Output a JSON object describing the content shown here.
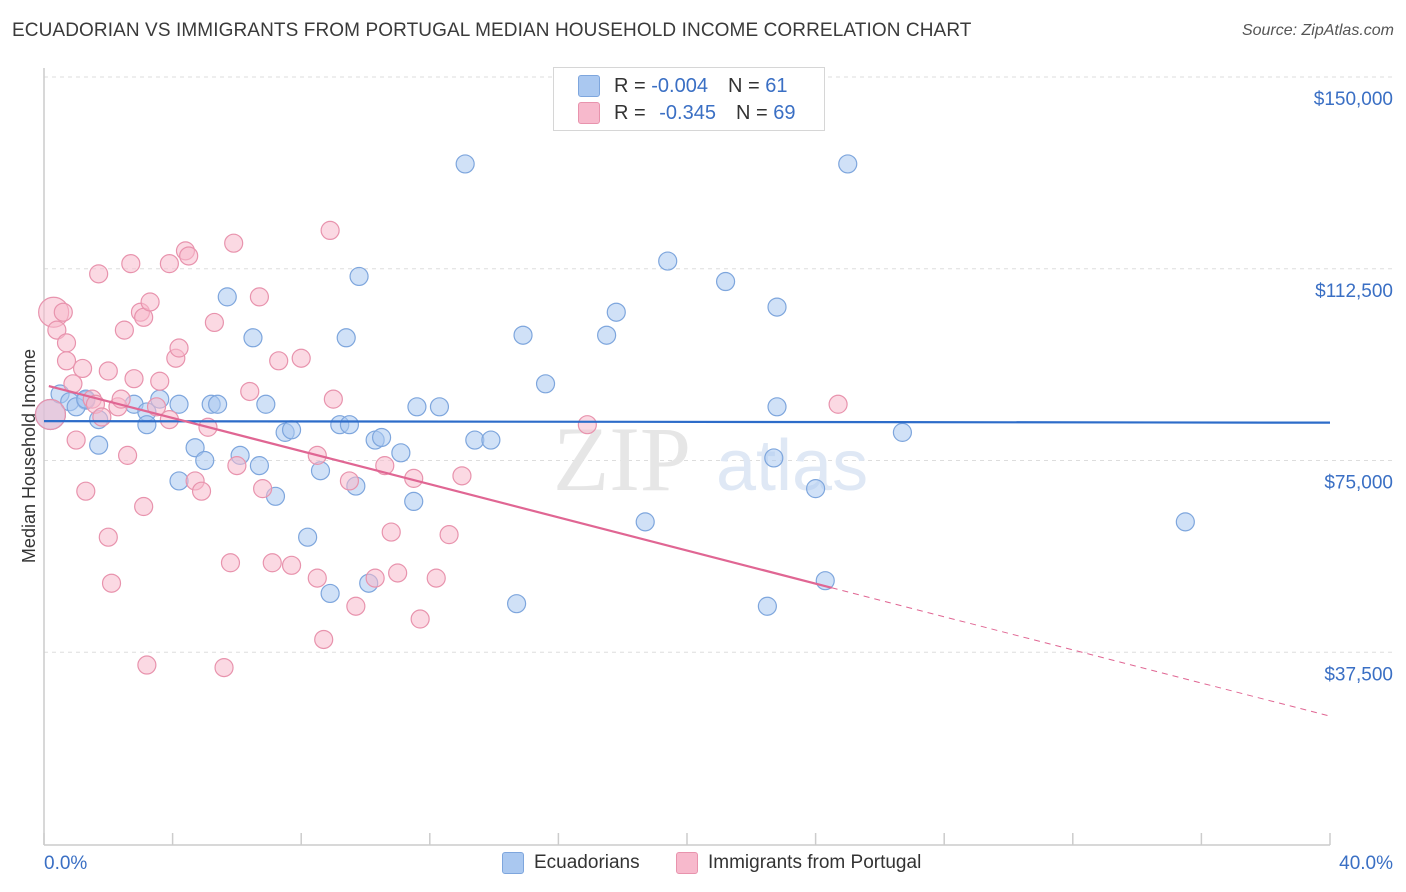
{
  "title": "ECUADORIAN VS IMMIGRANTS FROM PORTUGAL MEDIAN HOUSEHOLD INCOME CORRELATION CHART",
  "source": "Source: ZipAtlas.com",
  "watermark": {
    "part1": "ZIP",
    "part2": "atlas"
  },
  "legend": {
    "r_label": "R =",
    "n_label": "N =",
    "series1": {
      "r": "-0.004",
      "n": "61"
    },
    "series2": {
      "r": "-0.345",
      "n": "69"
    }
  },
  "bottom_legend": {
    "series1": "Ecuadorians",
    "series2": "Immigrants from Portugal"
  },
  "colors": {
    "blue_fill": "#aac8f0",
    "blue_stroke": "#7ea6dd",
    "blue_line": "#2d6cc9",
    "pink_fill": "#f7b9cc",
    "pink_stroke": "#e893ad",
    "pink_line": "#e06693",
    "tick_label": "#3a6fc4",
    "grid": "#dddddd"
  },
  "chart_data": {
    "type": "scatter",
    "title": "ECUADORIAN VS IMMIGRANTS FROM PORTUGAL MEDIAN HOUSEHOLD INCOME CORRELATION CHART",
    "xlabel": "",
    "ylabel": "Median Household Income",
    "xlim": [
      0,
      40
    ],
    "ylim": [
      0,
      150000
    ],
    "x_tick_labels": [
      {
        "value": 0,
        "label": "0.0%"
      },
      {
        "value": 40,
        "label": "40.0%"
      }
    ],
    "y_ticks": [
      {
        "value": 37500,
        "label": "$37,500"
      },
      {
        "value": 75000,
        "label": "$75,000"
      },
      {
        "value": 112500,
        "label": "$112,500"
      },
      {
        "value": 150000,
        "label": "$150,000"
      }
    ],
    "series": [
      {
        "name": "Ecuadorians",
        "r": -0.004,
        "n": 61,
        "trend": {
          "x": [
            0,
            40
          ],
          "y": [
            82700,
            82400
          ],
          "dashed_from": null
        },
        "points": [
          [
            0.2,
            84000
          ],
          [
            0.5,
            88000
          ],
          [
            0.8,
            86500
          ],
          [
            1.3,
            86800
          ],
          [
            1.0,
            85500
          ],
          [
            1.7,
            83000
          ],
          [
            1.7,
            78000
          ],
          [
            1.3,
            87000
          ],
          [
            2.8,
            86000
          ],
          [
            3.2,
            84500
          ],
          [
            3.2,
            82000
          ],
          [
            3.6,
            87000
          ],
          [
            4.2,
            86000
          ],
          [
            5.2,
            86000
          ],
          [
            5.4,
            86000
          ],
          [
            6.9,
            86000
          ],
          [
            4.7,
            77500
          ],
          [
            5.0,
            75000
          ],
          [
            4.2,
            71000
          ],
          [
            6.1,
            76000
          ],
          [
            6.7,
            74000
          ],
          [
            7.2,
            68000
          ],
          [
            7.5,
            80500
          ],
          [
            7.7,
            81000
          ],
          [
            8.6,
            73000
          ],
          [
            9.2,
            82000
          ],
          [
            8.2,
            60000
          ],
          [
            8.9,
            49000
          ],
          [
            9.7,
            70000
          ],
          [
            10.3,
            79000
          ],
          [
            10.5,
            79500
          ],
          [
            11.1,
            76500
          ],
          [
            10.1,
            51000
          ],
          [
            11.6,
            85500
          ],
          [
            12.3,
            85500
          ],
          [
            11.5,
            67000
          ],
          [
            13.4,
            79000
          ],
          [
            13.9,
            79000
          ],
          [
            13.1,
            133000
          ],
          [
            9.8,
            111000
          ],
          [
            9.4,
            99000
          ],
          [
            5.7,
            107000
          ],
          [
            6.5,
            99000
          ],
          [
            14.9,
            99500
          ],
          [
            15.6,
            90000
          ],
          [
            14.7,
            47000
          ],
          [
            17.5,
            99500
          ],
          [
            17.8,
            104000
          ],
          [
            18.7,
            63000
          ],
          [
            19.4,
            114000
          ],
          [
            21.2,
            110000
          ],
          [
            22.8,
            85500
          ],
          [
            22.7,
            75500
          ],
          [
            22.5,
            46500
          ],
          [
            22.8,
            105000
          ],
          [
            24.0,
            69500
          ],
          [
            24.3,
            51500
          ],
          [
            25.0,
            133000
          ],
          [
            26.7,
            80500
          ],
          [
            35.5,
            63000
          ],
          [
            9.5,
            82000
          ]
        ]
      },
      {
        "name": "Immigrants from Portugal",
        "r": -0.345,
        "n": 69,
        "trend": {
          "x": [
            0.0,
            40
          ],
          "y": [
            89800,
            25000
          ],
          "dashed_from": 24.5
        },
        "points": [
          [
            0.2,
            84000
          ],
          [
            0.3,
            104000
          ],
          [
            0.4,
            100500
          ],
          [
            0.6,
            104000
          ],
          [
            0.7,
            98000
          ],
          [
            0.7,
            94500
          ],
          [
            0.9,
            90000
          ],
          [
            1.0,
            79000
          ],
          [
            1.2,
            93000
          ],
          [
            1.3,
            69000
          ],
          [
            1.5,
            87000
          ],
          [
            1.6,
            86000
          ],
          [
            1.7,
            111500
          ],
          [
            1.8,
            83500
          ],
          [
            2.0,
            92500
          ],
          [
            2.0,
            60000
          ],
          [
            2.1,
            51000
          ],
          [
            2.3,
            85500
          ],
          [
            2.4,
            87000
          ],
          [
            2.5,
            100500
          ],
          [
            2.6,
            76000
          ],
          [
            2.7,
            113500
          ],
          [
            2.8,
            91000
          ],
          [
            3.0,
            104000
          ],
          [
            3.1,
            103000
          ],
          [
            3.1,
            66000
          ],
          [
            3.3,
            106000
          ],
          [
            3.2,
            35000
          ],
          [
            3.5,
            85500
          ],
          [
            3.6,
            90500
          ],
          [
            3.9,
            83000
          ],
          [
            3.9,
            113500
          ],
          [
            4.1,
            95000
          ],
          [
            4.2,
            97000
          ],
          [
            4.4,
            116000
          ],
          [
            4.5,
            115000
          ],
          [
            4.7,
            71000
          ],
          [
            4.9,
            69000
          ],
          [
            5.1,
            81500
          ],
          [
            5.3,
            102000
          ],
          [
            5.8,
            55000
          ],
          [
            5.9,
            117500
          ],
          [
            5.6,
            34500
          ],
          [
            6.0,
            74000
          ],
          [
            6.4,
            88500
          ],
          [
            6.7,
            107000
          ],
          [
            6.8,
            69500
          ],
          [
            7.1,
            55000
          ],
          [
            7.3,
            94500
          ],
          [
            7.7,
            54500
          ],
          [
            8.0,
            95000
          ],
          [
            8.5,
            76000
          ],
          [
            8.5,
            52000
          ],
          [
            8.7,
            40000
          ],
          [
            8.9,
            120000
          ],
          [
            9.0,
            87000
          ],
          [
            9.5,
            71000
          ],
          [
            9.7,
            46500
          ],
          [
            10.3,
            52000
          ],
          [
            10.6,
            74000
          ],
          [
            10.8,
            61000
          ],
          [
            11.0,
            53000
          ],
          [
            11.5,
            71500
          ],
          [
            11.7,
            44000
          ],
          [
            12.2,
            52000
          ],
          [
            12.6,
            60500
          ],
          [
            13.0,
            72000
          ],
          [
            16.9,
            82000
          ],
          [
            24.7,
            86000
          ]
        ]
      }
    ]
  }
}
